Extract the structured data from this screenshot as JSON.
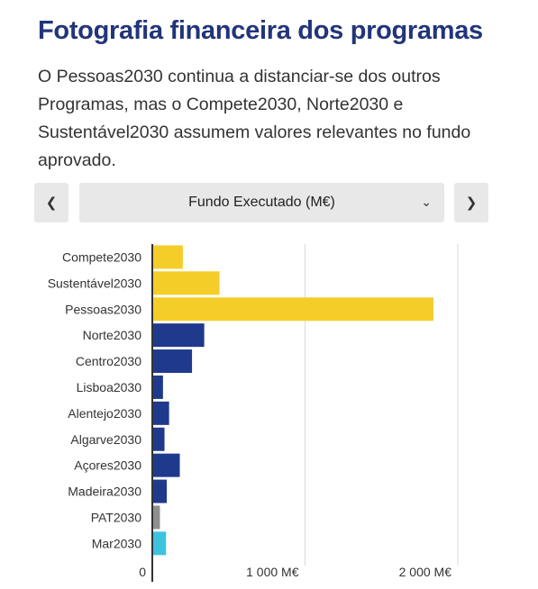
{
  "header": {
    "title": "Fotografia financeira dos programas",
    "subtitle": "O Pessoas2030 continua a distanciar-se dos outros Programas, mas o Compete2030, Norte2030 e Sustentável2030 assumem valores relevantes no fundo aprovado."
  },
  "controls": {
    "prev_icon": "chevron-left-icon",
    "next_icon": "chevron-right-icon",
    "selected_metric": "Fundo Executado (M€)"
  },
  "chart_data": {
    "type": "bar",
    "orientation": "horizontal",
    "categories": [
      "Compete2030",
      "Sustentável2030",
      "Pessoas2030",
      "Norte2030",
      "Centro2030",
      "Lisboa2030",
      "Alentejo2030",
      "Algarve2030",
      "Açores2030",
      "Madeira2030",
      "PAT2030",
      "Mar2030"
    ],
    "values": [
      200,
      440,
      1840,
      340,
      260,
      70,
      110,
      80,
      180,
      95,
      50,
      90
    ],
    "colors": [
      "#f5cd28",
      "#f5cd28",
      "#f5cd28",
      "#1f3a8c",
      "#1f3a8c",
      "#1f3a8c",
      "#1f3a8c",
      "#1f3a8c",
      "#1f3a8c",
      "#1f3a8c",
      "#8f8f8f",
      "#3ec3dd"
    ],
    "xlim": [
      0,
      2000
    ],
    "xticks": [
      0,
      1000,
      2000
    ],
    "xtick_labels": [
      "0",
      "1 000 M€",
      "2 000 M€"
    ],
    "grid": true
  }
}
